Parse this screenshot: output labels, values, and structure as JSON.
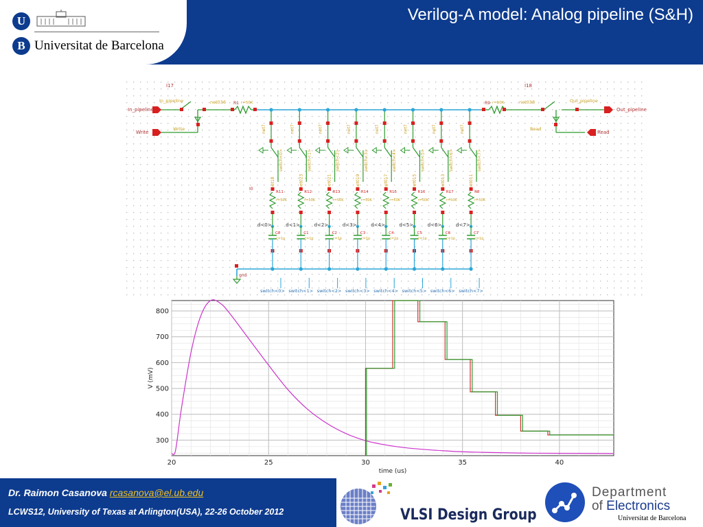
{
  "slide": {
    "title": "Verilog-A model: Analog pipeline (S&H)",
    "university": {
      "badge_top": "U",
      "badge_bottom": "B",
      "name": "Universitat de Barcelona"
    }
  },
  "schematic": {
    "top_left_instance": "I17",
    "top_right_instance": "I18",
    "resistor_left_name": "R1",
    "resistor_right_name": "R9",
    "resistor_value": "r=50K",
    "net_left": "net036",
    "net_right": "net038",
    "pin_in": "In_pipeline",
    "pin_out": "Out_pipeline",
    "pin_write": "Write",
    "pin_read": "Read",
    "label_in": "In_pipeline",
    "label_out": "Out_pipeline",
    "label_write": "Write",
    "label_read": "Read",
    "net_stage": "net7",
    "instance_i0": "I0",
    "gnd": "gnd",
    "cap_value": "c=1p",
    "stages": [
      {
        "switch": "switch<0>",
        "drop": "d<0>",
        "res": "R11",
        "cap": "C8",
        "net": "net18"
      },
      {
        "switch": "switch<1>",
        "drop": "d<1>",
        "res": "R12",
        "cap": "C1",
        "net": "net023"
      },
      {
        "switch": "switch<2>",
        "drop": "d<2>",
        "res": "R13",
        "cap": "C2",
        "net": "net021"
      },
      {
        "switch": "switch<3>",
        "drop": "d<3>",
        "res": "R14",
        "cap": "C3",
        "net": "net019"
      },
      {
        "switch": "switch<4>",
        "drop": "d<4>",
        "res": "R15",
        "cap": "C4",
        "net": "net017"
      },
      {
        "switch": "switch<5>",
        "drop": "d<5>",
        "res": "R16",
        "cap": "C5",
        "net": "net015"
      },
      {
        "switch": "switch<6>",
        "drop": "d<6>",
        "res": "R17",
        "cap": "C6",
        "net": "net013"
      },
      {
        "switch": "switch<7>",
        "drop": "d<7>",
        "res": "R8",
        "cap": "C7",
        "net": "net011"
      }
    ]
  },
  "chart_data": {
    "type": "line",
    "xlabel": "time (us)",
    "ylabel": "V (mV)",
    "xlim": [
      20,
      42.8
    ],
    "ylim": [
      240,
      840
    ],
    "xticks": [
      20,
      25,
      30,
      35,
      40
    ],
    "yticks": [
      300,
      400,
      500,
      600,
      700,
      800
    ],
    "grid": true,
    "colors": {
      "input": "#cc33cc",
      "out_a": "#d03030",
      "out_b": "#2e9a2e"
    },
    "series": [
      {
        "key": "input",
        "x": [
          20,
          20.2,
          20.5,
          21,
          21.5,
          22,
          22.5,
          23,
          24,
          25,
          26,
          27,
          28,
          29,
          30,
          31,
          32,
          33,
          34,
          35,
          36,
          38,
          40,
          42.8
        ],
        "y": [
          248,
          260,
          420,
          640,
          780,
          840,
          830,
          790,
          690,
          590,
          495,
          420,
          365,
          325,
          298,
          282,
          271,
          264,
          259,
          255,
          253,
          250,
          249,
          248
        ]
      },
      {
        "key": "out_a",
        "x": [
          30,
          30,
          31.4,
          31.4,
          32.7,
          32.7,
          34.1,
          34.1,
          35.4,
          35.4,
          36.7,
          36.7,
          38,
          38,
          39.4,
          39.4,
          42.8
        ],
        "y": [
          240,
          578,
          578,
          840,
          840,
          758,
          758,
          612,
          612,
          487,
          487,
          396,
          396,
          335,
          335,
          320,
          320
        ]
      },
      {
        "key": "out_b",
        "x": [
          30.05,
          30.05,
          31.5,
          31.5,
          32.8,
          32.8,
          34.2,
          34.2,
          35.5,
          35.5,
          36.8,
          36.8,
          38.1,
          38.1,
          39.5,
          39.5,
          42.8
        ],
        "y": [
          240,
          578,
          578,
          840,
          840,
          758,
          758,
          612,
          612,
          487,
          487,
          396,
          396,
          335,
          335,
          320,
          320
        ]
      }
    ]
  },
  "footer": {
    "author": "Dr. Raimon Casanova",
    "email": "rcasanova@el.ub.edu",
    "conference": "LCWS12, University of Texas at Arlington(USA), 22-26 October 2012"
  },
  "logos": {
    "vlsi": "VLSI Design Group",
    "dept_line1": "Department",
    "dept_of": "of",
    "dept_line2": "Electronics",
    "dept_line3": "Universitat de Barcelona"
  }
}
